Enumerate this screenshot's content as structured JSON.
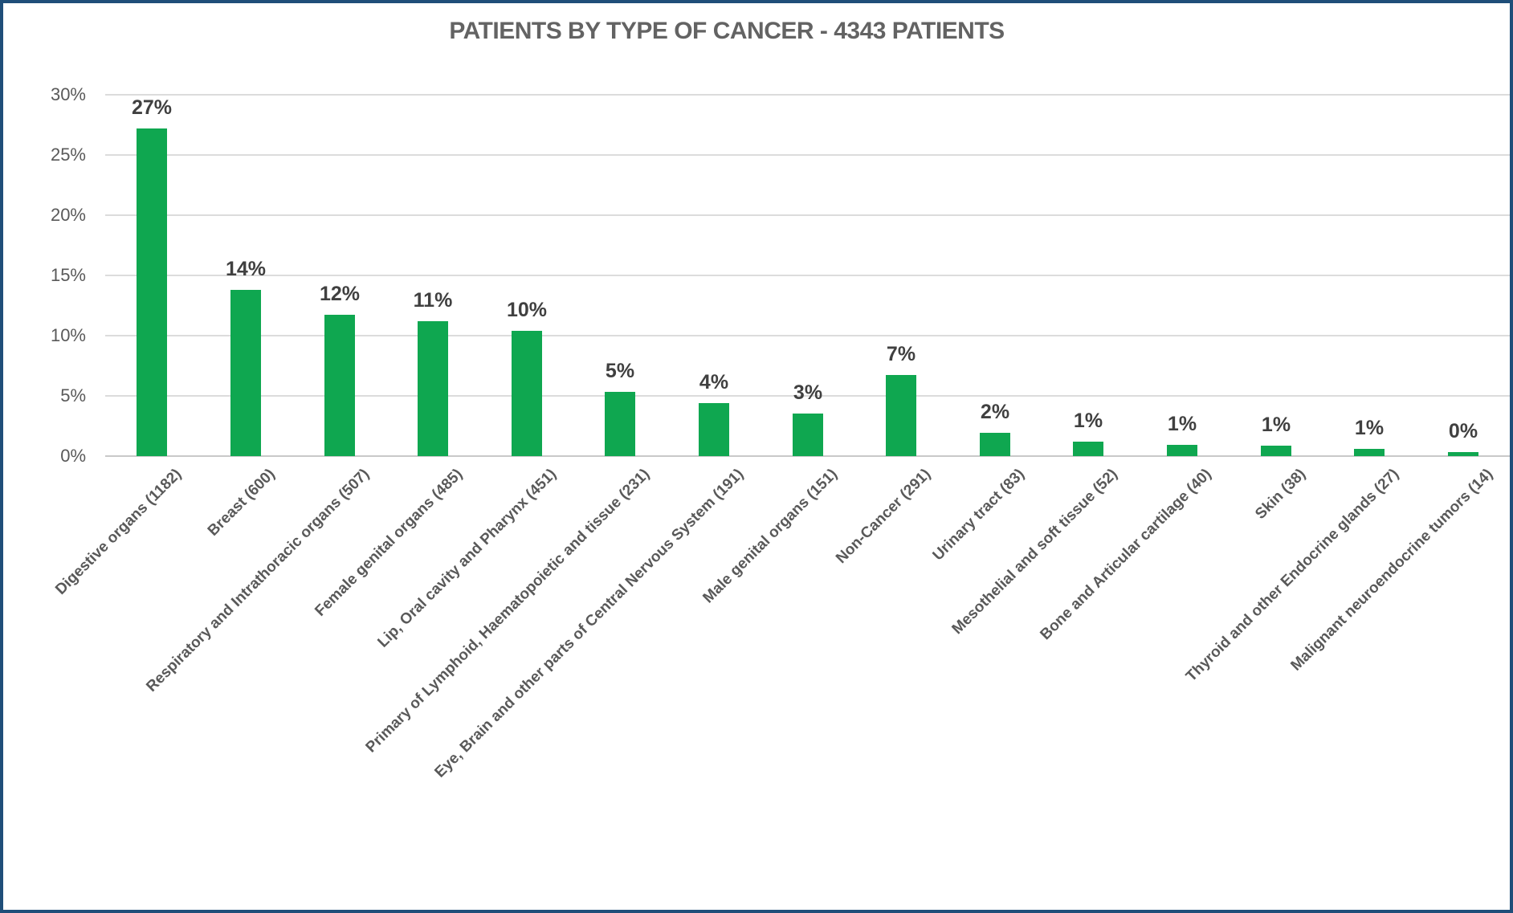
{
  "chart_data": {
    "type": "bar",
    "title": "PATIENTS BY TYPE OF CANCER - 4343 PATIENTS",
    "total_patients": 4343,
    "categories": [
      "Digestive organs (1182)",
      "Breast (600)",
      "Respiratory and Intrathoracic organs (507)",
      "Female genital organs (485)",
      "Lip, Oral cavity and Pharynx (451)",
      "Primary of Lymphoid, Haematopoietic and tissue (231)",
      "Eye, Brain and other parts of Central Nervous System (191)",
      "Male genital organs (151)",
      "Non-Cancer (291)",
      "Urinary tract (83)",
      "Mesothelial and soft tissue (52)",
      "Bone and Articular cartilage (40)",
      "Skin (38)",
      "Thyroid and other Endocrine glands (27)",
      "Malignant neuroendocrine tumors (14)"
    ],
    "counts": [
      1182,
      600,
      507,
      485,
      451,
      231,
      191,
      151,
      291,
      83,
      52,
      40,
      38,
      27,
      14
    ],
    "values_pct": [
      27.2,
      13.8,
      11.7,
      11.2,
      10.4,
      5.3,
      4.4,
      3.5,
      6.7,
      1.9,
      1.2,
      0.92,
      0.87,
      0.62,
      0.32
    ],
    "value_labels": [
      "27%",
      "14%",
      "12%",
      "11%",
      "10%",
      "5%",
      "4%",
      "3%",
      "7%",
      "2%",
      "1%",
      "1%",
      "1%",
      "1%",
      "0%"
    ],
    "y_ticks": [
      "0%",
      "5%",
      "10%",
      "15%",
      "20%",
      "25%",
      "30%"
    ],
    "ylabel": "",
    "xlabel": "",
    "ylim": [
      0,
      30
    ],
    "grid": true,
    "legend": "none",
    "bar_color": "#0FA750",
    "value_label_color": "#404040",
    "axis_text_color": "#595959",
    "gridline_color": "#DCDCDC",
    "frame_border_color": "#1F4E79"
  }
}
